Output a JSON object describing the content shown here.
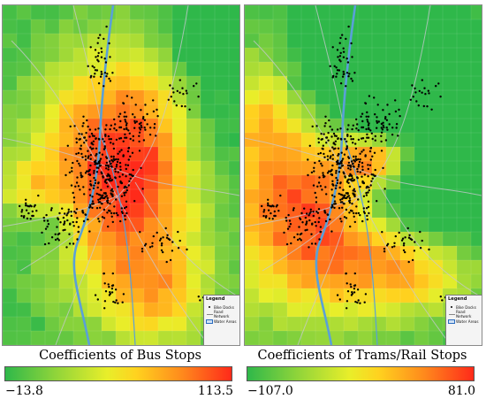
{
  "colors": {
    "low": "#2fb84a",
    "mid": "#e8ee2a",
    "high": "#ff2a1a",
    "river": "#5aa0d8",
    "roads": "#b8b8b8",
    "docks": "#000000"
  },
  "legend": {
    "title": "Legend",
    "bike_docks": "Bike Docks",
    "road_network": "Road Network",
    "water_areas": "Water Areas"
  },
  "panels": [
    {
      "id": "bus",
      "scale_title": "Coefficients of Bus Stops",
      "min_label": "−13.8",
      "max_label": "113.5"
    },
    {
      "id": "tram",
      "scale_title": "Coefficients of Trams/Rail Stops",
      "min_label": "−107.0",
      "max_label": "81.0"
    }
  ]
}
